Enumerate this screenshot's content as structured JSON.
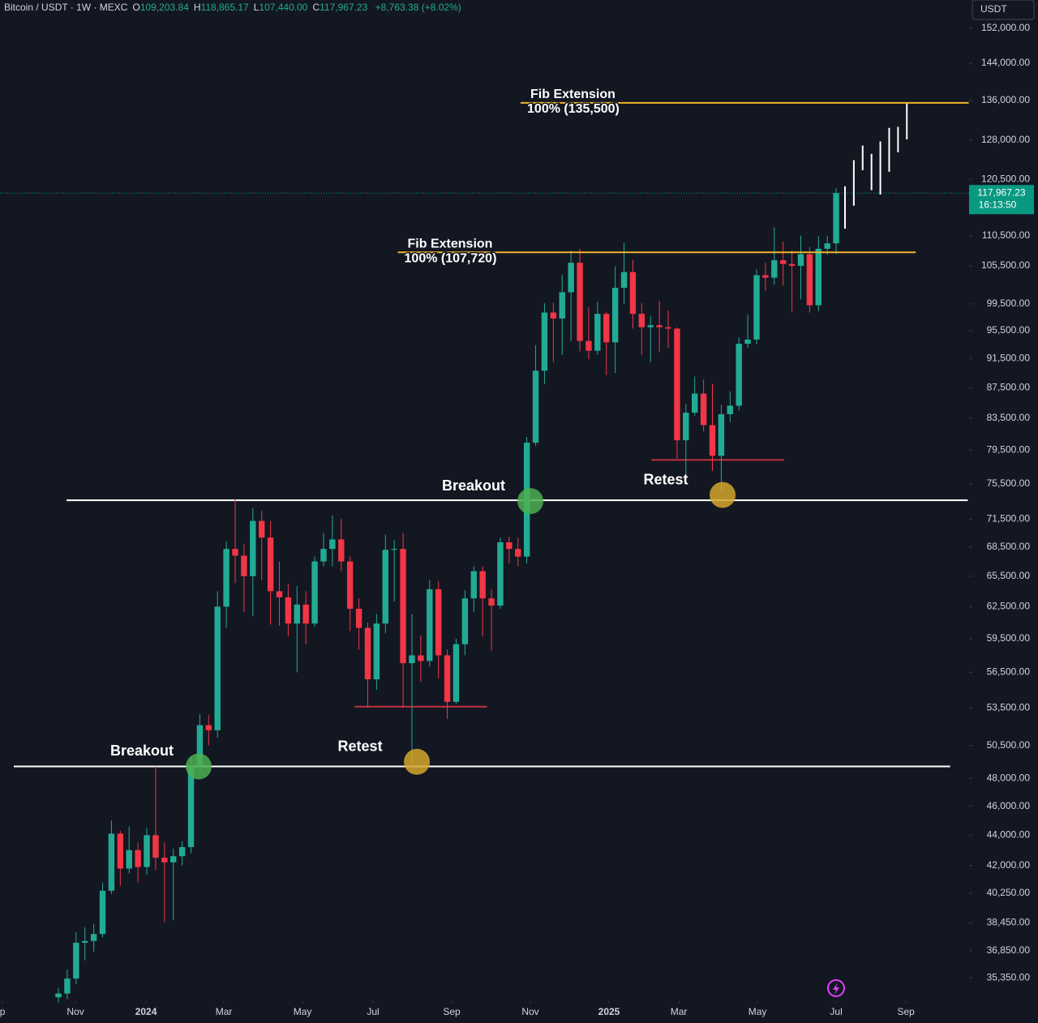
{
  "chart_data": {
    "type": "candlestick",
    "header": {
      "title": "Bitcoin / USDT · 1W · MEXC",
      "items": [
        {
          "key": "O",
          "label": "109,203.84"
        },
        {
          "key": "H",
          "label": "118,865.17"
        },
        {
          "key": "L",
          "label": "107,440.00"
        },
        {
          "key": "C",
          "label": "117,967.23"
        }
      ],
      "change": "+8,763.38 (+8.02%)"
    },
    "currency": "USDT",
    "up_color": "#22ab94",
    "down_color": "#f23645",
    "yscale": "log",
    "ylim": [
      34100,
      158700
    ],
    "yticks": [
      {
        "value": 152000,
        "label": "152,000.00"
      },
      {
        "value": 144000,
        "label": "144,000.00"
      },
      {
        "value": 136000,
        "label": "136,000.00"
      },
      {
        "value": 128000,
        "label": "128,000.00"
      },
      {
        "value": 120500,
        "label": "120,500.00"
      },
      {
        "value": 110500,
        "label": "110,500.00"
      },
      {
        "value": 105500,
        "label": "105,500.00"
      },
      {
        "value": 99500,
        "label": "99,500.00"
      },
      {
        "value": 95500,
        "label": "95,500.00"
      },
      {
        "value": 91500,
        "label": "91,500.00"
      },
      {
        "value": 87500,
        "label": "87,500.00"
      },
      {
        "value": 83500,
        "label": "83,500.00"
      },
      {
        "value": 79500,
        "label": "79,500.00"
      },
      {
        "value": 75500,
        "label": "75,500.00"
      },
      {
        "value": 71500,
        "label": "71,500.00"
      },
      {
        "value": 68500,
        "label": "68,500.00"
      },
      {
        "value": 65500,
        "label": "65,500.00"
      },
      {
        "value": 62500,
        "label": "62,500.00"
      },
      {
        "value": 59500,
        "label": "59,500.00"
      },
      {
        "value": 56500,
        "label": "56,500.00"
      },
      {
        "value": 53500,
        "label": "53,500.00"
      },
      {
        "value": 50500,
        "label": "50,500.00"
      },
      {
        "value": 48000,
        "label": "48,000.00"
      },
      {
        "value": 46000,
        "label": "46,000.00"
      },
      {
        "value": 44000,
        "label": "44,000.00"
      },
      {
        "value": 42000,
        "label": "42,000.00"
      },
      {
        "value": 40250,
        "label": "40,250.00"
      },
      {
        "value": 38450,
        "label": "38,450.00"
      },
      {
        "value": 36850,
        "label": "36,850.00"
      },
      {
        "value": 35350,
        "label": "35,350.00"
      }
    ],
    "xlim": [
      -6.61,
      103.04
    ],
    "xticks": [
      {
        "value": -6.33,
        "label": "p"
      },
      {
        "value": 1.93,
        "label": "Nov"
      },
      {
        "value": 9.91,
        "label": "2024"
      },
      {
        "value": 18.72,
        "label": "Mar"
      },
      {
        "value": 27.62,
        "label": "May"
      },
      {
        "value": 35.6,
        "label": "Jul"
      },
      {
        "value": 44.5,
        "label": "Sep"
      },
      {
        "value": 53.4,
        "label": "Nov"
      },
      {
        "value": 62.3,
        "label": "2025"
      },
      {
        "value": 70.2,
        "label": "Mar"
      },
      {
        "value": 79.1,
        "label": "May"
      },
      {
        "value": 88.0,
        "label": "Jul"
      },
      {
        "value": 95.9,
        "label": "Sep"
      }
    ],
    "candles": {
      "open": [
        34300,
        34500,
        35300,
        37300,
        37400,
        37800,
        40400,
        44100,
        41800,
        43000,
        41900,
        44000,
        42500,
        42200,
        42600,
        43200,
        48900,
        52100,
        51700,
        62500,
        68300,
        67600,
        65500,
        71300,
        69500,
        64000,
        63400,
        60900,
        62700,
        60900,
        67000,
        68300,
        69300,
        67000,
        62300,
        60500,
        55900,
        60900,
        68200,
        68300,
        57300,
        58000,
        57500,
        64200,
        58000,
        54000,
        59000,
        63300,
        66000,
        63300,
        62600,
        69000,
        68300,
        67500,
        80400,
        89800,
        98200,
        97300,
        101300,
        106000,
        94000,
        92600,
        98000,
        93800,
        102000,
        104500,
        98000,
        96000,
        96300,
        96000,
        95800,
        80700,
        84200,
        86700,
        82600,
        78800,
        84000,
        85100,
        93600,
        94200,
        104000,
        103600,
        106400,
        105800,
        105500,
        107400,
        99300,
        108300,
        109203.84
      ],
      "high": [
        34800,
        35800,
        37900,
        38200,
        38400,
        40900,
        45000,
        44300,
        44600,
        43500,
        44500,
        48900,
        43500,
        43100,
        43600,
        49600,
        53000,
        52900,
        64000,
        69100,
        73700,
        68800,
        72700,
        72400,
        71300,
        67000,
        64700,
        64500,
        64000,
        67500,
        70000,
        71900,
        71500,
        67500,
        63300,
        61000,
        61800,
        69800,
        69200,
        70000,
        61800,
        59800,
        65100,
        65000,
        58500,
        59500,
        64100,
        66500,
        66500,
        64200,
        69500,
        69600,
        69500,
        81100,
        93400,
        99600,
        99700,
        104000,
        108000,
        108300,
        99000,
        99800,
        98300,
        105400,
        109300,
        106500,
        99600,
        97700,
        100000,
        98500,
        96000,
        85300,
        89000,
        88600,
        88000,
        85200,
        87000,
        94500,
        97900,
        104900,
        106000,
        111900,
        109500,
        108000,
        110500,
        108600,
        110400,
        110500,
        118865.17
      ],
      "low": [
        34000,
        34200,
        35000,
        36300,
        36800,
        37600,
        40200,
        40700,
        41500,
        40900,
        41400,
        41700,
        38500,
        38600,
        42000,
        42800,
        48400,
        50500,
        51100,
        60500,
        64800,
        62000,
        61600,
        65100,
        60800,
        60700,
        59700,
        56500,
        59000,
        60600,
        66500,
        66500,
        66000,
        60200,
        58500,
        53500,
        55000,
        60000,
        63000,
        53500,
        49000,
        55700,
        57000,
        56000,
        52600,
        53800,
        58000,
        62000,
        59700,
        58400,
        62300,
        66800,
        66500,
        66800,
        80000,
        88000,
        91000,
        92000,
        94000,
        92500,
        91400,
        92000,
        89200,
        89500,
        99500,
        95800,
        92000,
        91000,
        92400,
        93000,
        78500,
        76600,
        83800,
        81800,
        77000,
        74600,
        83000,
        84500,
        93000,
        93500,
        101500,
        102500,
        102300,
        98300,
        100200,
        98200,
        98400,
        107300,
        107440
      ],
      "close": [
        34500,
        35300,
        37300,
        37400,
        37800,
        40400,
        44100,
        41800,
        43000,
        41900,
        44000,
        42500,
        42200,
        42600,
        43200,
        48900,
        52100,
        51700,
        62500,
        68300,
        67600,
        65500,
        71300,
        69500,
        64000,
        63400,
        60900,
        62700,
        60900,
        67000,
        68300,
        69300,
        67000,
        62300,
        60500,
        55900,
        60900,
        68200,
        68300,
        57300,
        58000,
        57500,
        64200,
        58000,
        54000,
        59000,
        63300,
        66000,
        63300,
        62600,
        69000,
        68300,
        67500,
        80400,
        89800,
        98200,
        97300,
        101300,
        106000,
        94000,
        92600,
        98000,
        93800,
        102000,
        104500,
        98000,
        96000,
        96300,
        96000,
        95800,
        80700,
        84200,
        86700,
        82600,
        78800,
        84000,
        85100,
        93600,
        94200,
        104000,
        103600,
        106400,
        105800,
        105500,
        107400,
        99300,
        108300,
        109200,
        117967.23
      ]
    },
    "projection": {
      "color": "#ffffff",
      "low": [
        111700,
        115700,
        122200,
        118500,
        117700,
        121900,
        125600,
        128100
      ],
      "high": [
        119200,
        124100,
        126900,
        125300,
        127700,
        130400,
        130600,
        135400
      ]
    },
    "levels": [
      {
        "price": 73600,
        "from": 0.92,
        "to": 102.9,
        "color": "#ffffff"
      },
      {
        "price": 48900,
        "from": -5.05,
        "to": 100.9,
        "color": "#ffffff"
      },
      {
        "price": 53600,
        "from": 33.5,
        "to": 48.5,
        "color": "#c2313d"
      },
      {
        "price": 78300,
        "from": 67.1,
        "to": 82.1,
        "color": "#c2313d"
      }
    ],
    "fibs": [
      {
        "price": 135500,
        "from": 52.3,
        "to": 103.0,
        "color": "#f0b429",
        "title": "Fib Extension",
        "label": "100% (135,500)"
      },
      {
        "price": 107720,
        "from": 38.4,
        "to": 97.0,
        "color": "#f0b429",
        "title": "Fib Extension",
        "label": "100% (107,720)"
      }
    ],
    "markers": [
      {
        "text": "Breakout",
        "x": 15.87,
        "price": 48900,
        "color": "#4caf50"
      },
      {
        "text": "Retest",
        "x": 40.56,
        "price": 49250,
        "color": "#d4a72c"
      },
      {
        "text": "Breakout",
        "x": 53.4,
        "price": 73500,
        "color": "#4caf50"
      },
      {
        "text": "Retest",
        "x": 75.15,
        "price": 74200,
        "color": "#d4a72c"
      }
    ],
    "price_tag": {
      "value": 117967.23,
      "label": "117,967.23",
      "timer": "16:13:50",
      "color": "#089981"
    }
  }
}
